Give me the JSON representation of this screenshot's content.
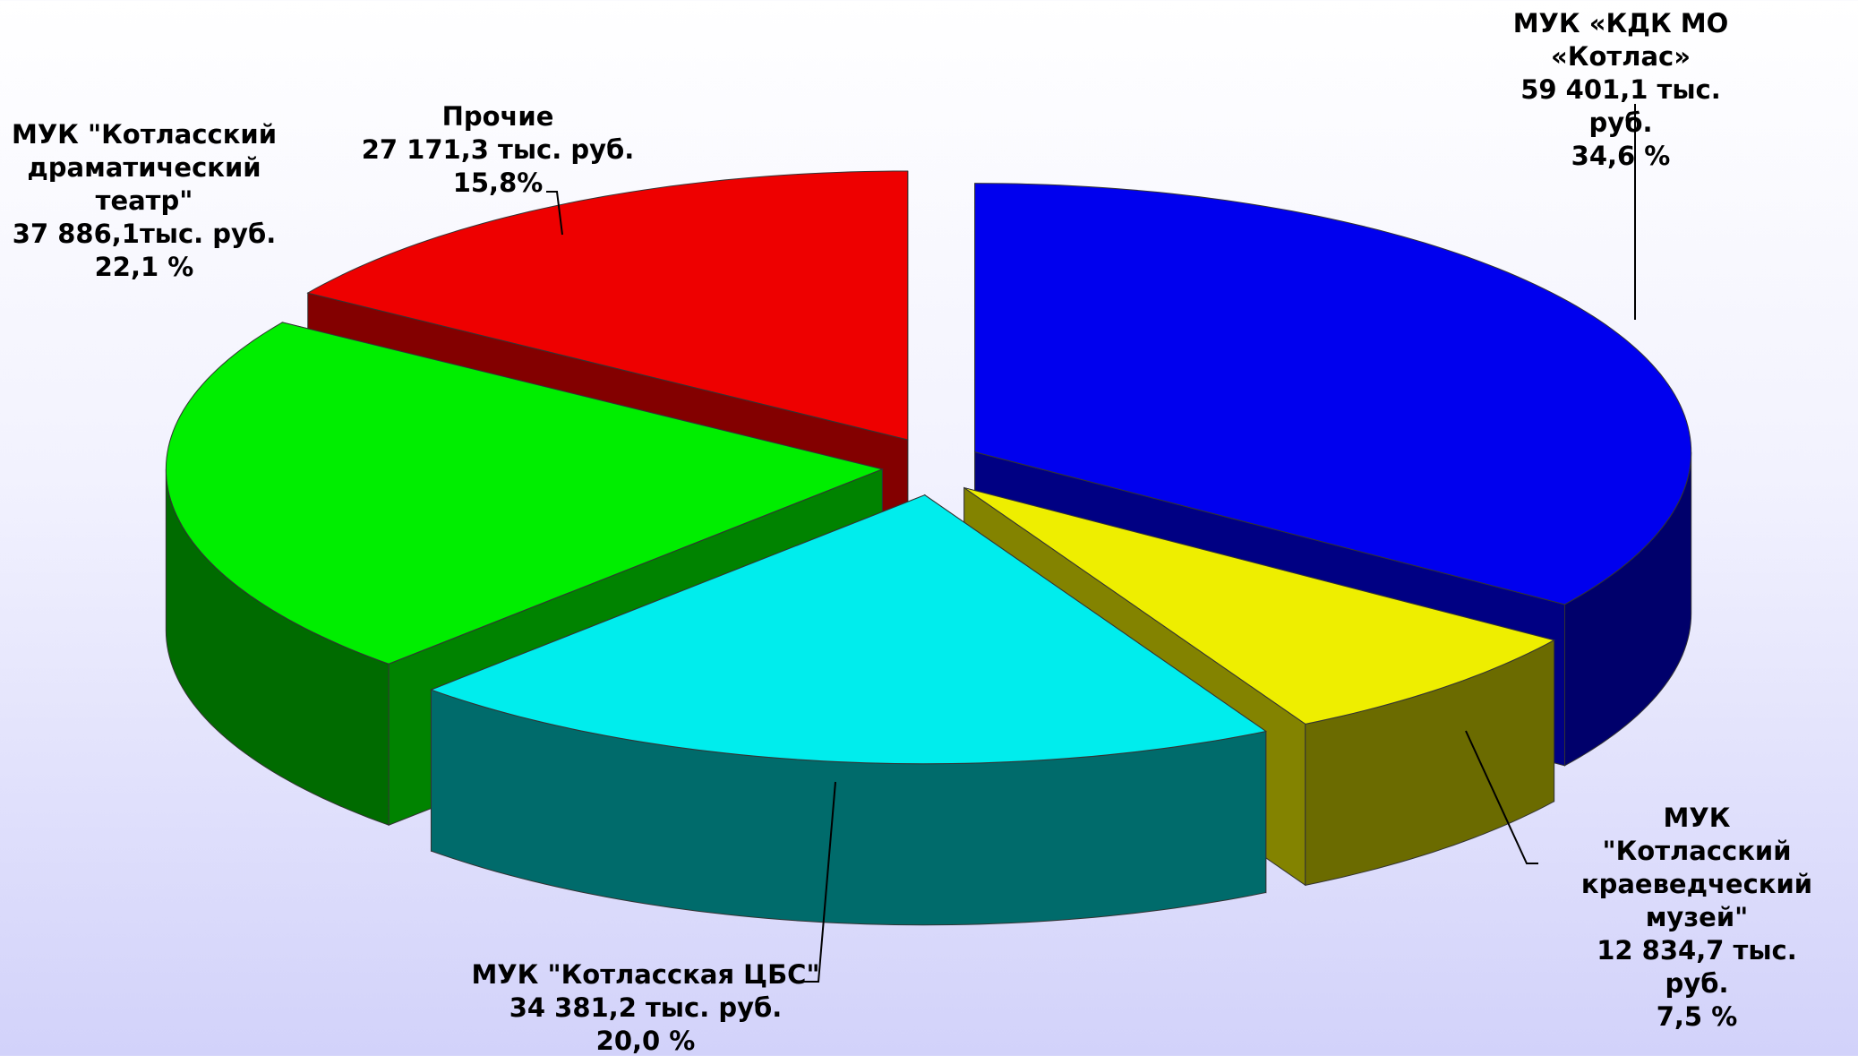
{
  "chart_data": {
    "type": "pie3d",
    "categories": [
      "МУК «КДК МО «Котлас»",
      "МУК \"Котласский\nкраеведческий музей\"",
      "МУК \"Котласская ЦБС\"",
      "МУК \"Котласский\nдраматический\nтеатр\"",
      "Прочие"
    ],
    "amount_labels": [
      "59 401,1 тыс. руб.",
      "12 834,7 тыс. руб.",
      "34 381,2 тыс. руб.",
      "37 886,1тыс. руб.",
      "27 171,3 тыс. руб."
    ],
    "values": [
      34.6,
      7.5,
      20.0,
      22.1,
      15.8
    ],
    "value_labels": [
      "34,6 %",
      "7,5 %",
      "20,0 %",
      "22,1 %",
      "15,8%"
    ],
    "colors": [
      "#0000ee",
      "#eeee00",
      "#00eded",
      "#00ee00",
      "#ee0000"
    ]
  }
}
